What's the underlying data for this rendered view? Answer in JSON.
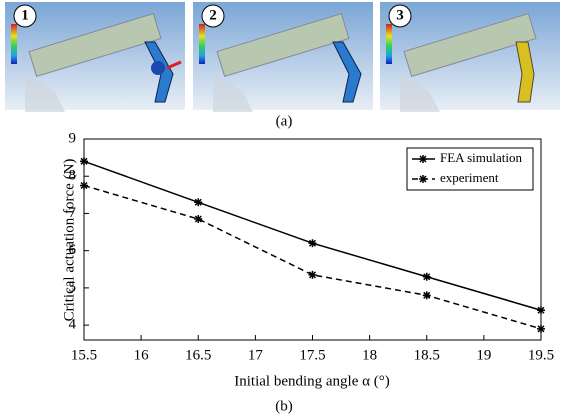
{
  "figure": {
    "panel_numbers": [
      "1",
      "2",
      "3"
    ],
    "caption_a": "(a)"
  },
  "chart_data": {
    "type": "line",
    "caption": "(b)",
    "x_label": "Initial bending angle α (°)",
    "y_label": "Critical actuation force (N)",
    "x": [
      15.5,
      16.5,
      17.5,
      18.5,
      19.5
    ],
    "series": [
      {
        "name": "FEA simulation",
        "color": "#000000",
        "dash": "solid",
        "values": [
          8.4,
          7.3,
          6.2,
          5.3,
          4.4
        ]
      },
      {
        "name": "experiment",
        "color": "#000000",
        "dash": "dashed",
        "values": [
          7.75,
          6.85,
          5.35,
          4.8,
          3.9
        ]
      }
    ],
    "xlim": [
      15.5,
      19.5
    ],
    "xticks": [
      15.5,
      16,
      16.5,
      17,
      17.5,
      18,
      18.5,
      19,
      19.5
    ],
    "ylim": [
      3.6,
      9
    ],
    "yticks": [
      4,
      5,
      6,
      7,
      8,
      9
    ],
    "grid": false,
    "legend": "upper right"
  }
}
